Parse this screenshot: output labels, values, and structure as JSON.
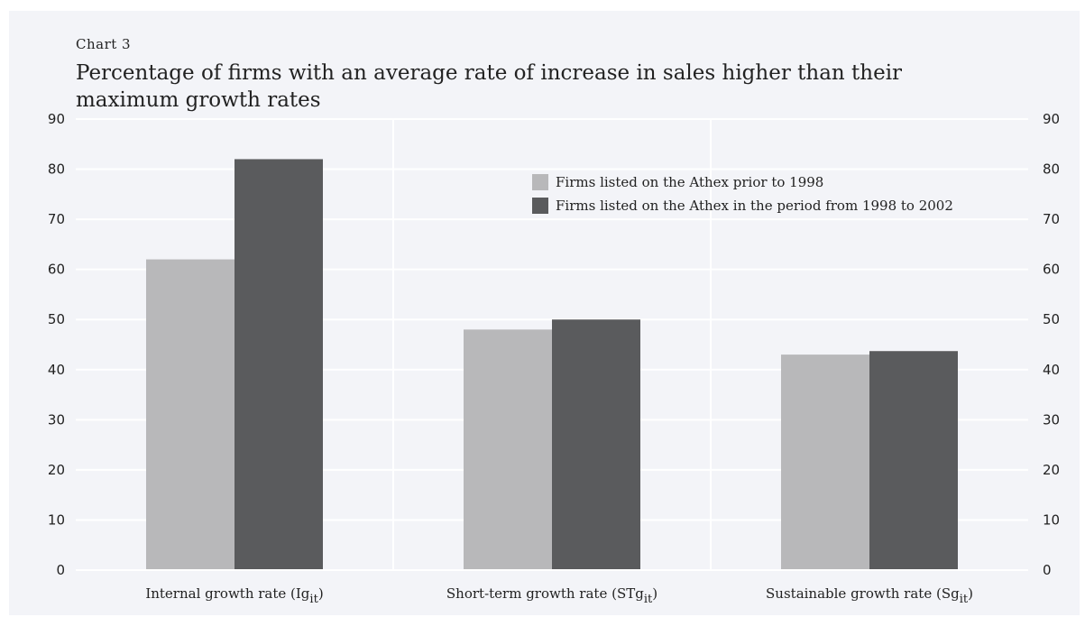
{
  "chart_label": "Chart  3",
  "chart_title": "Percentage of firms with an average rate of increase in sales higher than their maximum growth rates",
  "chart_data": {
    "type": "bar",
    "title": "Percentage of firms with an average rate of increase in sales higher than their maximum growth rates",
    "categories": [
      {
        "text": "Internal growth rate (Ig",
        "sub": "it",
        "close": ")"
      },
      {
        "text": "Short-term growth rate (STg",
        "sub": "it",
        "close": ")"
      },
      {
        "text": "Sustainable growth rate (Sg",
        "sub": "it",
        "close": ")"
      }
    ],
    "series": [
      {
        "name": "Firms listed on the Athex prior to 1998",
        "color": "#b8b8ba",
        "values": [
          62,
          48,
          43
        ]
      },
      {
        "name": "Firms listed on the Athex in the period from 1998 to 2002",
        "color": "#5a5b5d",
        "values": [
          82,
          50,
          43.7
        ]
      }
    ],
    "ylim": [
      0,
      90
    ],
    "yticks": [
      0,
      10,
      20,
      30,
      40,
      50,
      60,
      70,
      80,
      90
    ],
    "grid": true,
    "legend_position": "top-right",
    "xlabel": "",
    "ylabel": ""
  }
}
